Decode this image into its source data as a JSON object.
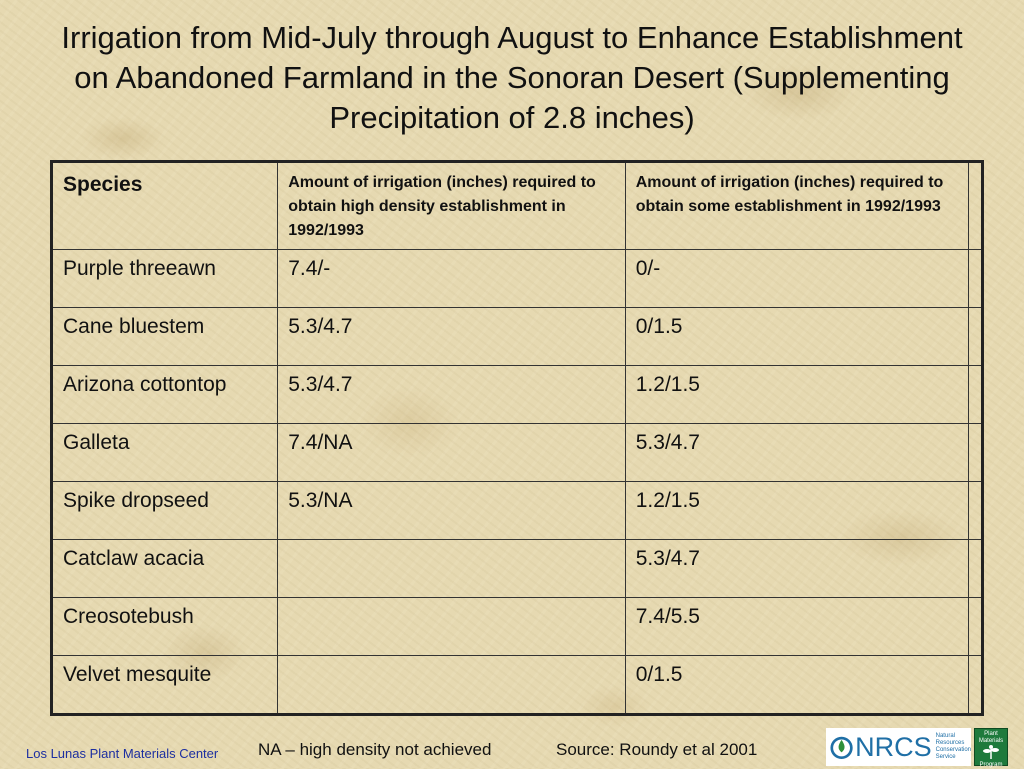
{
  "slide": {
    "title": "Irrigation from Mid-July through August to Enhance Establishment on Abandoned Farmland in the Sonoran Desert (Supplementing Precipitation of 2.8 inches)"
  },
  "table": {
    "headers": {
      "species": "Species",
      "high_density": "Amount of irrigation (inches) required to obtain high density establishment in 1992/1993",
      "some": "Amount of irrigation (inches) required to obtain some establishment in 1992/1993",
      "extra": ""
    },
    "rows": [
      {
        "species": "Purple threeawn",
        "high": "7.4/-",
        "some": "0/-",
        "extra": ""
      },
      {
        "species": "Cane bluestem",
        "high": "5.3/4.7",
        "some": "0/1.5",
        "extra": ""
      },
      {
        "species": "Arizona cottontop",
        "high": "5.3/4.7",
        "some": "1.2/1.5",
        "extra": ""
      },
      {
        "species": "Galleta",
        "high": "7.4/NA",
        "some": "5.3/4.7",
        "extra": ""
      },
      {
        "species": "Spike dropseed",
        "high": "5.3/NA",
        "some": "1.2/1.5",
        "extra": ""
      },
      {
        "species": "Catclaw acacia",
        "high": "",
        "some": "5.3/4.7",
        "extra": ""
      },
      {
        "species": "Creosotebush",
        "high": "",
        "some": "7.4/5.5",
        "extra": ""
      },
      {
        "species": "Velvet mesquite",
        "high": "",
        "some": "0/1.5",
        "extra": ""
      }
    ]
  },
  "footer": {
    "credit": "Los Lunas Plant Materials Center",
    "note": "NA – high density not achieved",
    "source": "Source: Roundy et al 2001"
  },
  "logos": {
    "nrcs": "NRCS",
    "nrcs_sub": [
      "Natural",
      "Resources",
      "Conservation",
      "Service"
    ],
    "pmp": [
      "Plant",
      "Materials",
      "Program"
    ]
  },
  "colors": {
    "background": "#e6d9b1",
    "credit_text": "#1d2fa0",
    "nrcs_blue": "#1f6fa6",
    "pmp_green": "#1e7a3c"
  }
}
